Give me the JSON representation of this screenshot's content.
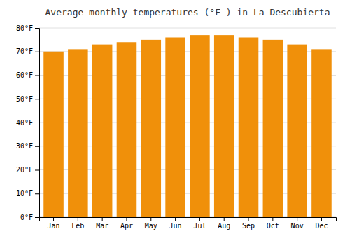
{
  "chart_data": {
    "type": "bar",
    "title": "Average monthly temperatures (°F ) in La Descubierta",
    "categories": [
      "Jan",
      "Feb",
      "Mar",
      "Apr",
      "May",
      "Jun",
      "Jul",
      "Aug",
      "Sep",
      "Oct",
      "Nov",
      "Dec"
    ],
    "values": [
      70,
      71,
      73,
      74,
      75,
      76,
      77,
      77,
      76,
      75,
      73,
      71
    ],
    "color": "#F0900A",
    "ylim": [
      0,
      80
    ],
    "yticks": [
      {
        "value": 0,
        "label": "0°F"
      },
      {
        "value": 10,
        "label": "10°F"
      },
      {
        "value": 20,
        "label": "20°F"
      },
      {
        "value": 30,
        "label": "30°F"
      },
      {
        "value": 40,
        "label": "40°F"
      },
      {
        "value": 50,
        "label": "50°F"
      },
      {
        "value": 60,
        "label": "60°F"
      },
      {
        "value": 70,
        "label": "70°F"
      },
      {
        "value": 80,
        "label": "80°F"
      }
    ],
    "grid": true
  }
}
